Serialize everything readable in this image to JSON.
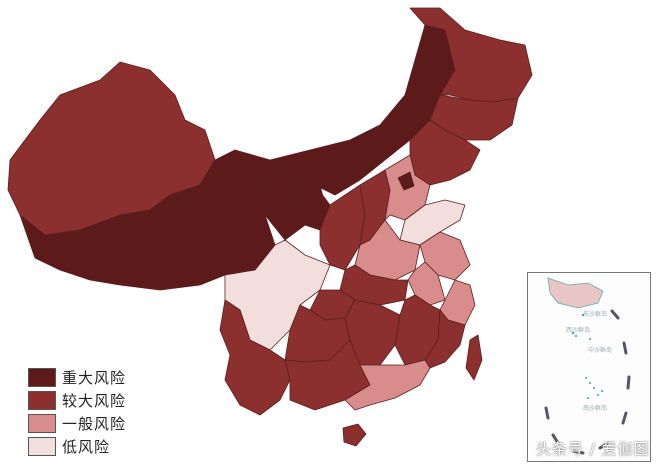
{
  "legend": {
    "items": [
      {
        "label": "重大风险",
        "color": "#5c1a1a"
      },
      {
        "label": "较大风险",
        "color": "#8c2f2f"
      },
      {
        "label": "一般风险",
        "color": "#d88c8c"
      },
      {
        "label": "低风险",
        "color": "#f3dede"
      }
    ]
  },
  "watermark": "头条号 / 爱伽图",
  "inset": {
    "labels": [
      "东沙群岛",
      "西沙群岛",
      "中沙群岛",
      "南沙群岛"
    ]
  },
  "colors": {
    "major": "#5c1a1a",
    "larger": "#8c2f2f",
    "general": "#d88c8c",
    "low": "#f3dede",
    "border": "#5a2020"
  }
}
